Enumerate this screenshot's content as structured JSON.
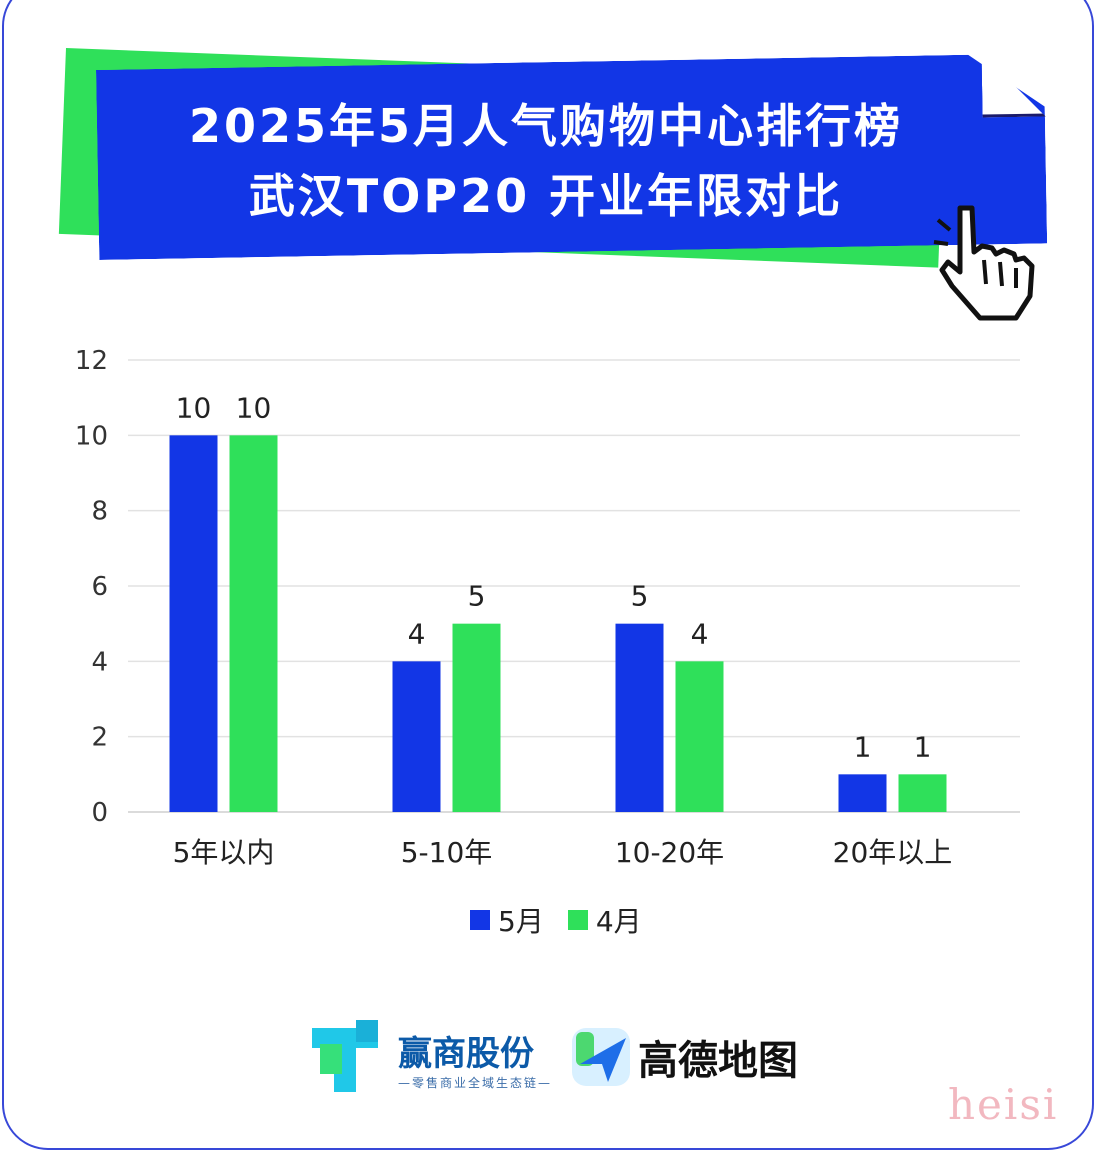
{
  "title": {
    "line1": "2025年5月人气购物中心排行榜",
    "line2": "武汉TOP20 开业年限对比"
  },
  "colors": {
    "series_may": "#1236e6",
    "series_april": "#2fe05a",
    "frame": "#3848d8"
  },
  "icons": [
    "pointer-hand-icon",
    "yingshang-logo-icon",
    "amap-logo-icon"
  ],
  "chart_data": {
    "type": "bar",
    "categories": [
      "5年以内",
      "5-10年",
      "10-20年",
      "20年以上"
    ],
    "series": [
      {
        "name": "5月",
        "values": [
          10,
          4,
          5,
          1
        ]
      },
      {
        "name": "4月",
        "values": [
          10,
          5,
          4,
          1
        ]
      }
    ],
    "ylim": [
      0,
      12
    ],
    "yticks": [
      0,
      2,
      4,
      6,
      8,
      10,
      12
    ],
    "grid": true,
    "legend": "bottom"
  },
  "footer": {
    "brand1": "赢商股份",
    "brand1_sub": "—零售商业全域生态链—",
    "brand2": "高德地图",
    "watermark": "heisi"
  }
}
